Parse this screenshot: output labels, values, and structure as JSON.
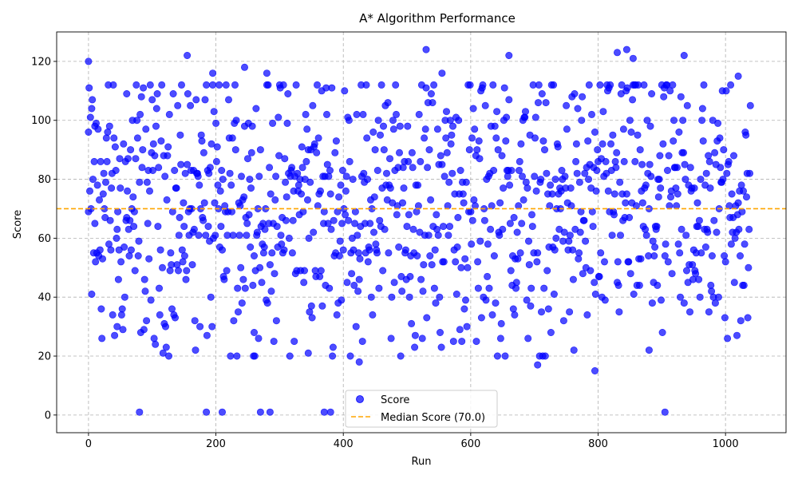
{
  "chart_data": {
    "type": "scatter",
    "title": "A* Algorithm Performance",
    "xlabel": "Run",
    "ylabel": "Score",
    "xlim": [
      -50,
      1095
    ],
    "ylim": [
      -6,
      130
    ],
    "x_ticks": [
      0,
      200,
      400,
      600,
      800,
      1000
    ],
    "y_ticks": [
      0,
      20,
      40,
      60,
      80,
      100,
      120
    ],
    "grid": true,
    "legend_position": "lower-center",
    "series": [
      {
        "name": "Score",
        "kind": "scatter",
        "color": "#0000ff",
        "n_points": 1040,
        "seed": 12345,
        "distribution": "uniform-ish around 70 with range 20-124, occasional zeros",
        "highlight_points": [
          {
            "x": 0,
            "y": 120
          },
          {
            "x": 0,
            "y": 96
          },
          {
            "x": 5,
            "y": 104
          },
          {
            "x": 10,
            "y": 98
          },
          {
            "x": 45,
            "y": 30
          },
          {
            "x": 60,
            "y": 109
          },
          {
            "x": 80,
            "y": 1
          },
          {
            "x": 155,
            "y": 122
          },
          {
            "x": 195,
            "y": 116
          },
          {
            "x": 185,
            "y": 1
          },
          {
            "x": 210,
            "y": 1
          },
          {
            "x": 245,
            "y": 118
          },
          {
            "x": 260,
            "y": 28
          },
          {
            "x": 270,
            "y": 1
          },
          {
            "x": 285,
            "y": 1
          },
          {
            "x": 280,
            "y": 116
          },
          {
            "x": 345,
            "y": 21
          },
          {
            "x": 370,
            "y": 1
          },
          {
            "x": 380,
            "y": 1
          },
          {
            "x": 425,
            "y": 18
          },
          {
            "x": 530,
            "y": 124
          },
          {
            "x": 555,
            "y": 116
          },
          {
            "x": 660,
            "y": 122
          },
          {
            "x": 705,
            "y": 17
          },
          {
            "x": 795,
            "y": 15
          },
          {
            "x": 830,
            "y": 123
          },
          {
            "x": 845,
            "y": 124
          },
          {
            "x": 855,
            "y": 121
          },
          {
            "x": 880,
            "y": 22
          },
          {
            "x": 905,
            "y": 1
          },
          {
            "x": 935,
            "y": 122
          },
          {
            "x": 1020,
            "y": 115
          }
        ]
      },
      {
        "name": "Median Score (70.0)",
        "kind": "hline",
        "value": 70.0,
        "color": "#ffa500"
      }
    ]
  }
}
